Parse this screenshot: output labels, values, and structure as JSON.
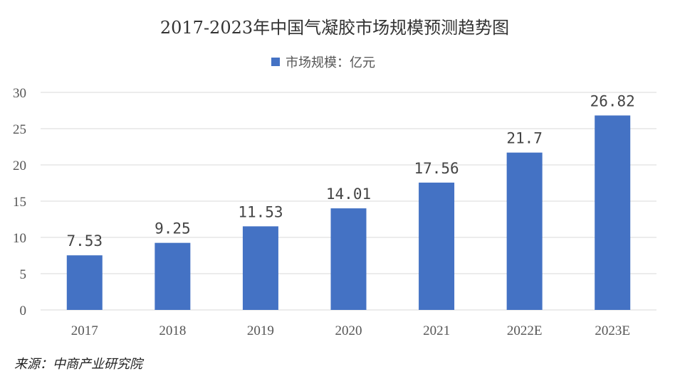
{
  "chart_data": {
    "type": "bar",
    "title": "2017-2023年中国气凝胶市场规模预测趋势图",
    "categories": [
      "2017",
      "2018",
      "2019",
      "2020",
      "2021",
      "2022E",
      "2023E"
    ],
    "series": [
      {
        "name": "市场规模：亿元",
        "values": [
          7.53,
          9.25,
          11.53,
          14.01,
          17.56,
          21.7,
          26.82
        ]
      }
    ],
    "data_labels": [
      "7.53",
      "9.25",
      "11.53",
      "14.01",
      "17.56",
      "21.7",
      "26.82"
    ],
    "ylim": [
      0,
      30
    ],
    "yticks": [
      0,
      5,
      10,
      15,
      20,
      25,
      30
    ],
    "xlabel": "",
    "ylabel": "",
    "grid": true,
    "legend_position": "top",
    "bar_color": "#4472C4",
    "grid_color": "#D9D9D9"
  },
  "footer": {
    "source": "来源：中商产业研究院"
  }
}
